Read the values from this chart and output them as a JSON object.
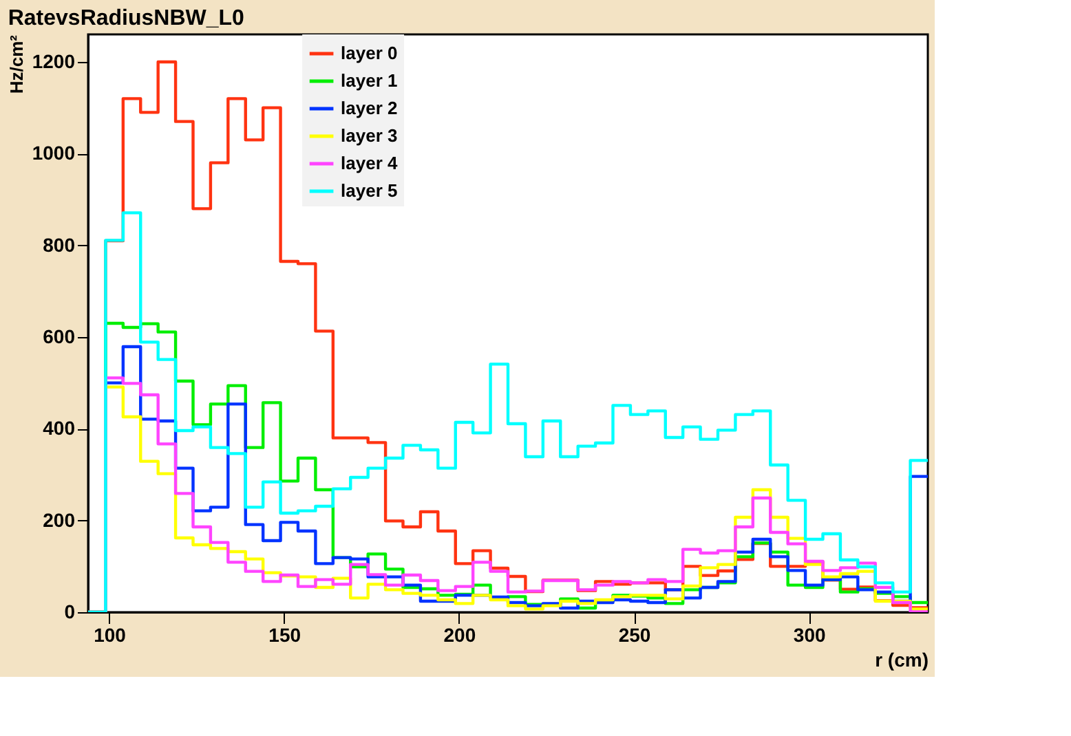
{
  "chart_data": {
    "type": "histogram",
    "title": "RatevsRadiusNBW_L0",
    "xlabel": "r (cm)",
    "ylabel": "Hz/cm²",
    "bins": [
      94,
      99,
      104,
      109,
      114,
      119,
      124,
      129,
      134,
      139,
      144,
      149,
      154,
      159,
      164,
      169,
      174,
      179,
      184,
      189,
      194,
      199,
      204,
      209,
      214,
      219,
      224,
      229,
      234,
      239,
      244,
      249,
      254,
      259,
      264,
      269,
      274,
      279,
      284,
      289,
      294,
      299,
      304,
      309,
      314,
      319,
      324,
      329,
      334
    ],
    "series": [
      {
        "name": "layer 0",
        "color": "#ff3311",
        "values": [
          0,
          810,
          1120,
          1090,
          1200,
          1070,
          880,
          980,
          1120,
          1030,
          1100,
          765,
          760,
          613,
          380,
          380,
          370,
          199,
          186,
          219,
          177,
          106,
          134,
          96,
          78,
          45,
          70,
          70,
          47,
          67,
          61,
          64,
          64,
          49,
          100,
          80,
          90,
          115,
          150,
          100,
          100,
          110,
          70,
          50,
          55,
          25,
          15,
          10
        ]
      },
      {
        "name": "layer 1",
        "color": "#00ee00",
        "values": [
          0,
          630,
          621,
          629,
          611,
          504,
          409,
          454,
          494,
          359,
          457,
          286,
          336,
          267,
          119,
          99,
          127,
          94,
          54,
          51,
          37,
          39,
          59,
          31,
          34,
          17,
          17,
          29,
          9,
          24,
          37,
          35,
          31,
          19,
          49,
          54,
          64,
          121,
          151,
          131,
          59,
          54,
          71,
          44,
          51,
          41,
          34,
          21
        ]
      },
      {
        "name": "layer 2",
        "color": "#0033ff",
        "values": [
          0,
          500,
          579,
          421,
          417,
          314,
          221,
          229,
          454,
          191,
          156,
          196,
          177,
          106,
          119,
          116,
          77,
          77,
          59,
          24,
          24,
          37,
          37,
          33,
          21,
          14,
          19,
          9,
          24,
          21,
          27,
          24,
          21,
          49,
          31,
          54,
          67,
          131,
          159,
          121,
          91,
          59,
          71,
          77,
          49,
          44,
          24,
          296
        ]
      },
      {
        "name": "layer 3",
        "color": "#ffff00",
        "values": [
          0,
          491,
          426,
          329,
          302,
          162,
          147,
          139,
          132,
          116,
          86,
          79,
          77,
          54,
          74,
          31,
          61,
          49,
          41,
          37,
          27,
          19,
          37,
          27,
          14,
          7,
          14,
          24,
          19,
          27,
          34,
          37,
          37,
          29,
          57,
          97,
          104,
          207,
          267,
          207,
          161,
          104,
          77,
          84,
          89,
          24,
          24,
          7
        ]
      },
      {
        "name": "layer 4",
        "color": "#ff44ff",
        "values": [
          0,
          511,
          499,
          474,
          367,
          259,
          186,
          152,
          109,
          89,
          67,
          81,
          56,
          71,
          61,
          104,
          82,
          59,
          81,
          69,
          47,
          56,
          109,
          89,
          44,
          46,
          69,
          69,
          49,
          59,
          67,
          64,
          71,
          67,
          137,
          129,
          134,
          186,
          249,
          174,
          149,
          111,
          91,
          97,
          107,
          54,
          21,
          1
        ]
      },
      {
        "name": "layer 5",
        "color": "#00ffff",
        "values": [
          0,
          811,
          871,
          589,
          551,
          396,
          404,
          359,
          346,
          229,
          284,
          216,
          221,
          231,
          269,
          294,
          314,
          336,
          364,
          354,
          314,
          414,
          391,
          541,
          411,
          339,
          417,
          339,
          362,
          369,
          451,
          431,
          439,
          381,
          404,
          377,
          397,
          431,
          439,
          321,
          244,
          159,
          171,
          114,
          99,
          64,
          44,
          331
        ]
      }
    ],
    "xlim": [
      94,
      334
    ],
    "xticks": [
      100,
      150,
      200,
      250,
      300
    ],
    "ylim": [
      0,
      1260
    ],
    "yticks": [
      0,
      200,
      400,
      600,
      800,
      1000,
      1200
    ],
    "legend": "top",
    "grid": false
  }
}
